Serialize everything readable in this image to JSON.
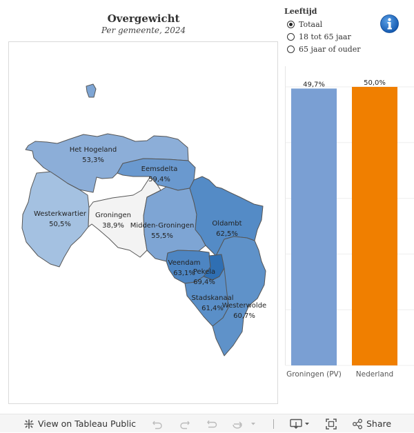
{
  "header": {
    "title": "Overgewicht",
    "subtitle": "Per gemeente, 2024"
  },
  "filter": {
    "title": "Leeftijd",
    "options": [
      {
        "label": "Totaal",
        "checked": true
      },
      {
        "label": "18 tot 65 jaar",
        "checked": false
      },
      {
        "label": "65 jaar of ouder",
        "checked": false
      }
    ]
  },
  "map": {
    "regions": [
      {
        "id": "het-hogeland",
        "name": "Het Hogeland",
        "value": "53,3%",
        "color": "#8caed8"
      },
      {
        "id": "eemsdelta",
        "name": "Eemsdelta",
        "value": "59,4%",
        "color": "#6a99cf"
      },
      {
        "id": "westerkwartier",
        "name": "Westerkwartier",
        "value": "50,5%",
        "color": "#a4c1e1"
      },
      {
        "id": "groningen",
        "name": "Groningen",
        "value": "38,9%",
        "color": "#f3f3f3"
      },
      {
        "id": "midden-groningen",
        "name": "Midden-Groningen",
        "value": "55,5%",
        "color": "#7ea5d4"
      },
      {
        "id": "oldambt",
        "name": "Oldambt",
        "value": "62,5%",
        "color": "#548bc6"
      },
      {
        "id": "veendam",
        "name": "Veendam",
        "value": "63,1%",
        "color": "#4d85c2"
      },
      {
        "id": "pekela",
        "name": "Pekela",
        "value": "69,4%",
        "color": "#2f6fb3"
      },
      {
        "id": "stadskanaal",
        "name": "Stadskanaal",
        "value": "61,4%",
        "color": "#5a8fc8"
      },
      {
        "id": "westerwolde",
        "name": "Westerwolde",
        "value": "60,7%",
        "color": "#5f92c9"
      }
    ]
  },
  "chart_data": {
    "type": "bar",
    "categories": [
      "Groningen (PV)",
      "Nederland"
    ],
    "values": [
      49.7,
      50.0
    ],
    "value_labels": [
      "49,7%",
      "50,0%"
    ],
    "colors": [
      "#7a9fd3",
      "#f07f00"
    ],
    "ylim": [
      0,
      50
    ],
    "grid": true
  },
  "toolbar": {
    "view_label": "View on Tableau Public",
    "share_label": "Share"
  }
}
